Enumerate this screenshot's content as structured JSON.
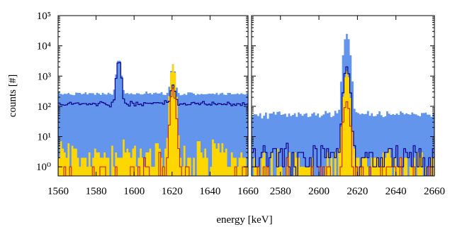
{
  "colors": {
    "all_events": "#6495ed",
    "selection_a": "#ffd700",
    "selection_b": "#00008b",
    "selection_c": "#cc2200"
  },
  "chart_data": [
    {
      "type": "area",
      "title": "",
      "xlabel": "energy [keV]",
      "ylabel": "counts [#]",
      "xlim": [
        1560,
        1660
      ],
      "ylim": [
        0.5,
        100000
      ],
      "yscale": "log",
      "x_ticks": [
        1560,
        1580,
        1600,
        1620,
        1640,
        1660
      ],
      "y_ticks": [
        {
          "value": 1,
          "label": "10⁰"
        },
        {
          "value": 10,
          "label": "10¹"
        },
        {
          "value": 100,
          "label": "10²"
        },
        {
          "value": 1000,
          "label": "10³"
        },
        {
          "value": 10000,
          "label": "10⁴"
        },
        {
          "value": 100000,
          "label": "10⁵"
        }
      ],
      "grid": false,
      "bin_width": 1,
      "series": [
        {
          "key": "all_events",
          "style": "filled",
          "background": 260,
          "peaks": [
            {
              "center": 1592,
              "height": 3400,
              "sigma": 0.9
            },
            {
              "center": 1620.5,
              "height": 2200,
              "sigma": 0.9
            }
          ]
        },
        {
          "key": "selection_a",
          "style": "filled",
          "background": 2.5,
          "peaks": [
            {
              "center": 1620.5,
              "height": 2400,
              "sigma": 0.9
            }
          ]
        },
        {
          "key": "selection_b",
          "style": "step",
          "background": 120,
          "peaks": [
            {
              "center": 1592,
              "height": 3000,
              "sigma": 0.9
            },
            {
              "center": 1620.5,
              "height": 400,
              "sigma": 0.9
            }
          ]
        },
        {
          "key": "selection_c",
          "style": "step",
          "background": 0.3,
          "peaks": [
            {
              "center": 1620.5,
              "height": 380,
              "sigma": 0.9
            }
          ]
        }
      ]
    },
    {
      "type": "area",
      "title": "",
      "xlabel": "energy [keV]",
      "ylabel": "",
      "xlim": [
        2565,
        2660
      ],
      "ylim": [
        0.5,
        100000
      ],
      "yscale": "log",
      "x_ticks": [
        2580,
        2600,
        2620,
        2640,
        2660
      ],
      "grid": false,
      "bin_width": 1,
      "series": [
        {
          "key": "all_events",
          "style": "filled",
          "background": 55,
          "peaks": [
            {
              "center": 2614.5,
              "height": 25000,
              "sigma": 1.1
            }
          ]
        },
        {
          "key": "selection_a",
          "style": "filled",
          "background": 1.3,
          "peaks": [
            {
              "center": 2614.5,
              "height": 1500,
              "sigma": 1.0
            }
          ]
        },
        {
          "key": "selection_b",
          "style": "step",
          "background": 2.2,
          "peaks": [
            {
              "center": 2614.5,
              "height": 2000,
              "sigma": 1.0
            }
          ]
        },
        {
          "key": "selection_c",
          "style": "step",
          "background": 0.25,
          "peaks": [
            {
              "center": 2614.5,
              "height": 150,
              "sigma": 1.0
            }
          ]
        }
      ]
    }
  ]
}
